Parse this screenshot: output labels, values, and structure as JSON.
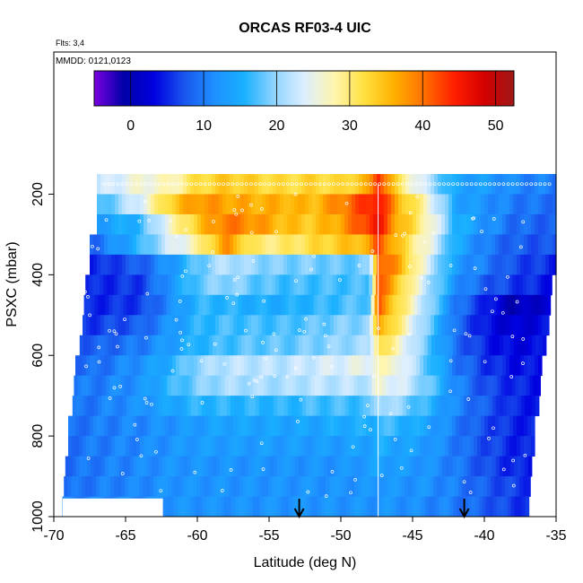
{
  "chart_data": {
    "type": "heatmap",
    "title": "ORCAS RF03-4 UIC",
    "subtitle_flights": "Flts: 3,4",
    "subtitle_dates": "MMDD: 0121,0123",
    "xlabel": "Latitude (deg N)",
    "ylabel": "PSXC (mbar)",
    "xlim": [
      -70,
      -35
    ],
    "ylim": [
      1000,
      150
    ],
    "y_reversed": true,
    "x_ticks": [
      -70,
      -65,
      -60,
      -55,
      -50,
      -45,
      -40,
      -35
    ],
    "x_tick_labels": [
      "-70",
      "-65",
      "-60",
      "-55",
      "-50",
      "-45",
      "-40",
      "-35"
    ],
    "y_ticks": [
      200,
      400,
      600,
      800,
      1000
    ],
    "y_tick_labels": [
      "200",
      "400",
      "600",
      "800",
      "1000"
    ],
    "colorbar": {
      "range": [
        -5,
        52.5
      ],
      "ticks": [
        0,
        10,
        20,
        30,
        40,
        50
      ],
      "tick_labels": [
        "0",
        "10",
        "20",
        "30",
        "40",
        "50"
      ],
      "colors": [
        "#7a00e0",
        "#0000a8",
        "#0000e0",
        "#1a55ee",
        "#1e90ff",
        "#19b0ff",
        "#8fd4ff",
        "#dceeff",
        "#fff5b0",
        "#ffe040",
        "#ffb000",
        "#ff7000",
        "#ff2000",
        "#d40000",
        "#a01818"
      ]
    },
    "pressure_levels": [
      175,
      225,
      275,
      325,
      375,
      425,
      475,
      525,
      575,
      625,
      675,
      725,
      775,
      825,
      875,
      925,
      975
    ],
    "level_lat_min": [
      -67,
      -67,
      -67,
      -67.5,
      -67.5,
      -67.8,
      -67.9,
      -68,
      -68.2,
      -68.5,
      -68.6,
      -68.7,
      -69,
      -69,
      -69.2,
      -69.3,
      -69.4
    ],
    "level_lat_max": [
      -35,
      -35,
      -35,
      -35,
      -35,
      -35.4,
      -35.5,
      -35.5,
      -35.8,
      -36,
      -36.2,
      -36.3,
      -36.5,
      -36.6,
      -36.8,
      -36.9,
      -37
    ],
    "profile_latitudes": [
      -52.9,
      -41.4
    ],
    "divider_latitude": -47.4,
    "lat_nodes": [
      -69,
      -67,
      -64,
      -62,
      -60,
      -58,
      -56,
      -54,
      -52,
      -50,
      -48,
      -47.4,
      -46,
      -44,
      -42,
      -40,
      -38,
      -35
    ],
    "values": [
      [
        null,
        22,
        26,
        27,
        32,
        34,
        33,
        32,
        33,
        32,
        36,
        45,
        31,
        22,
        14,
        13,
        11,
        10
      ],
      [
        null,
        16,
        24,
        33,
        38,
        37,
        36,
        36,
        35,
        39,
        44,
        46,
        36,
        27,
        14,
        12,
        10,
        9
      ],
      [
        null,
        13,
        16,
        26,
        34,
        40,
        38,
        35,
        34,
        37,
        44,
        46,
        36,
        28,
        16,
        12,
        9,
        8
      ],
      [
        null,
        9,
        16,
        23,
        28,
        38,
        30,
        30,
        32,
        34,
        36,
        43,
        34,
        26,
        15,
        10,
        8,
        7
      ],
      [
        null,
        5,
        8,
        12,
        18,
        22,
        20,
        19,
        19,
        18,
        19,
        42,
        37,
        24,
        13,
        10,
        7,
        5
      ],
      [
        null,
        5,
        6,
        12,
        18,
        20,
        18,
        17,
        17,
        17,
        17,
        42,
        34,
        22,
        12,
        8,
        6,
        4
      ],
      [
        null,
        5,
        6,
        11,
        16,
        16,
        15,
        15,
        16,
        17,
        18,
        41,
        32,
        21,
        10,
        5,
        0,
        3
      ],
      [
        null,
        6,
        8,
        12,
        16,
        17,
        17,
        17,
        18,
        19,
        20,
        38,
        30,
        19,
        9,
        4,
        2,
        4
      ],
      [
        null,
        8,
        10,
        13,
        16,
        17,
        18,
        18,
        19,
        20,
        21,
        33,
        27,
        18,
        9,
        5,
        3,
        4
      ],
      [
        null,
        9,
        12,
        15,
        20,
        22,
        22,
        22,
        23,
        24,
        25,
        27,
        26,
        18,
        10,
        6,
        4,
        4
      ],
      [
        null,
        10,
        12,
        16,
        19,
        21,
        21,
        21,
        22,
        22,
        22,
        26,
        24,
        19,
        11,
        7,
        5,
        4
      ],
      [
        9,
        10,
        12,
        14,
        16,
        16,
        16,
        16,
        17,
        17,
        17,
        22,
        20,
        16,
        11,
        8,
        5,
        4
      ],
      [
        9,
        10,
        11,
        12,
        13,
        14,
        14,
        14,
        14,
        15,
        15,
        17,
        16,
        14,
        10,
        7,
        5,
        4
      ],
      [
        9,
        10,
        11,
        12,
        13,
        13,
        13,
        13,
        13,
        13,
        14,
        15,
        14,
        13,
        10,
        7,
        5,
        4
      ],
      [
        9,
        10,
        11,
        12,
        12,
        12,
        12,
        12,
        12,
        12,
        13,
        14,
        13,
        12,
        10,
        7,
        5,
        4
      ],
      [
        9,
        10,
        11,
        12,
        12,
        12,
        12,
        12,
        12,
        12,
        12,
        13,
        12,
        12,
        10,
        8,
        6,
        5
      ],
      [
        10,
        11,
        11,
        12,
        12,
        12,
        12,
        12,
        12,
        12,
        12,
        12,
        12,
        11,
        10,
        8,
        6,
        5
      ]
    ]
  }
}
